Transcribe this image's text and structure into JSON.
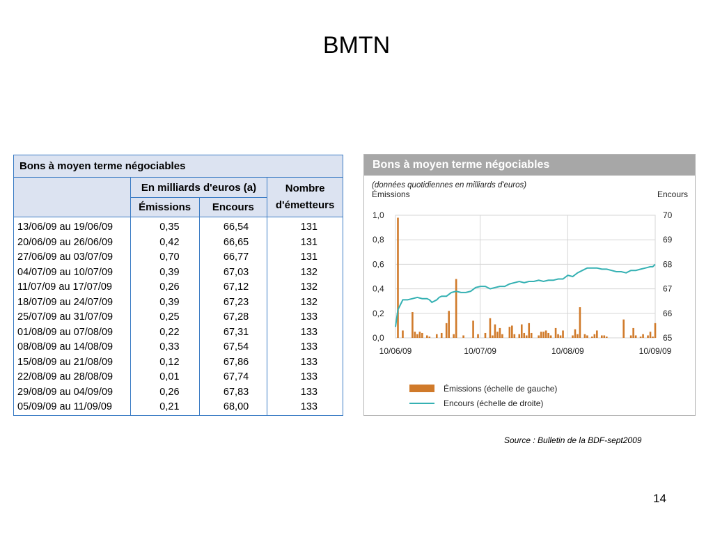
{
  "slide": {
    "title": "BMTN",
    "source": "Source : Bulletin de la BDF-sept2009",
    "page_number": "14"
  },
  "table": {
    "title": "Bons à moyen terme négociables",
    "group_header": "En milliards d'euros (a)",
    "col_emissions": "Émissions",
    "col_encours": "Encours",
    "col_nombre": "Nombre d'émetteurs",
    "rows": [
      {
        "period": "13/06/09 au 19/06/09",
        "emissions": "0,35",
        "encours": "66,54",
        "nombre": "131"
      },
      {
        "period": "20/06/09 au 26/06/09",
        "emissions": "0,42",
        "encours": "66,65",
        "nombre": "131"
      },
      {
        "period": "27/06/09 au 03/07/09",
        "emissions": "0,70",
        "encours": "66,77",
        "nombre": "131"
      },
      {
        "period": "04/07/09 au 10/07/09",
        "emissions": "0,39",
        "encours": "67,03",
        "nombre": "132"
      },
      {
        "period": "11/07/09 au 17/07/09",
        "emissions": "0,26",
        "encours": "67,12",
        "nombre": "132"
      },
      {
        "period": "18/07/09 au 24/07/09",
        "emissions": "0,39",
        "encours": "67,23",
        "nombre": "132"
      },
      {
        "period": "25/07/09 au 31/07/09",
        "emissions": "0,25",
        "encours": "67,28",
        "nombre": "133"
      },
      {
        "period": "01/08/09 au 07/08/09",
        "emissions": "0,22",
        "encours": "67,31",
        "nombre": "133"
      },
      {
        "period": "08/08/09 au 14/08/09",
        "emissions": "0,33",
        "encours": "67,54",
        "nombre": "133"
      },
      {
        "period": "15/08/09 au 21/08/09",
        "emissions": "0,12",
        "encours": "67,86",
        "nombre": "133"
      },
      {
        "period": "22/08/09 au 28/08/09",
        "emissions": "0,01",
        "encours": "67,74",
        "nombre": "133"
      },
      {
        "period": "29/08/09 au 04/09/09",
        "emissions": "0,26",
        "encours": "67,83",
        "nombre": "133"
      },
      {
        "period": "05/09/09 au 11/09/09",
        "emissions": "0,21",
        "encours": "68,00",
        "nombre": "133"
      }
    ]
  },
  "chart_data": {
    "type": "bar",
    "title": "Bons à moyen terme négociables",
    "subtitle": "(données quotidiennes en milliards d'euros)",
    "ylabel": "Émissions",
    "y2label": "Encours",
    "ylim": [
      0,
      1.0
    ],
    "y2lim": [
      65,
      70
    ],
    "yticks": [
      "0,0",
      "0,2",
      "0,4",
      "0,6",
      "0,8",
      "1,0"
    ],
    "y2ticks": [
      "65",
      "66",
      "67",
      "68",
      "69",
      "70"
    ],
    "xticks": [
      "10/06/09",
      "10/07/09",
      "10/08/09",
      "10/09/09"
    ],
    "xrange_days": [
      0,
      92
    ],
    "grid": true,
    "legend_position": "bottom",
    "series": [
      {
        "name": "Émissions (échelle de gauche)",
        "kind": "bar",
        "color": "#d07a2a",
        "axis": "left",
        "x": [
          1,
          3,
          7,
          8,
          9,
          10,
          11,
          13,
          14,
          17,
          19,
          21,
          22,
          24,
          25,
          28,
          32,
          34,
          37,
          39,
          40,
          41,
          42,
          43,
          44,
          47,
          48,
          49,
          51,
          52,
          53,
          54,
          55,
          56,
          59,
          60,
          61,
          62,
          63,
          64,
          66,
          67,
          68,
          69,
          73,
          74,
          75,
          76,
          78,
          79,
          81,
          82,
          83,
          85,
          86,
          87,
          94,
          97,
          98,
          99,
          101,
          102,
          104,
          105,
          106,
          107
        ],
        "values": [
          0.98,
          0.06,
          0.21,
          0.05,
          0.03,
          0.05,
          0.04,
          0.02,
          0.01,
          0.03,
          0.04,
          0.12,
          0.22,
          0.03,
          0.48,
          0.02,
          0.14,
          0.03,
          0.04,
          0.16,
          0.02,
          0.11,
          0.05,
          0.08,
          0.03,
          0.09,
          0.1,
          0.03,
          0.03,
          0.11,
          0.04,
          0.02,
          0.12,
          0.04,
          0.02,
          0.05,
          0.05,
          0.06,
          0.04,
          0.02,
          0.08,
          0.03,
          0.02,
          0.06,
          0.02,
          0.07,
          0.03,
          0.25,
          0.03,
          0.02,
          0.01,
          0.03,
          0.06,
          0.02,
          0.02,
          0.01,
          0.15,
          0.02,
          0.08,
          0.02,
          0.01,
          0.03,
          0.02,
          0.05,
          0.01,
          0.12
        ]
      },
      {
        "name": "Encours (échelle de droite)",
        "kind": "line",
        "color": "#35b1b3",
        "axis": "right",
        "x": [
          0,
          1,
          3,
          5,
          7,
          9,
          11,
          13,
          14,
          15,
          17,
          18,
          19,
          21,
          23,
          25,
          27,
          29,
          31,
          33,
          35,
          37,
          39,
          41,
          43,
          45,
          47,
          49,
          51,
          53,
          55,
          57,
          59,
          61,
          63,
          65,
          67,
          69,
          71,
          73,
          75,
          77,
          79,
          81,
          83,
          85,
          87,
          89,
          91,
          93,
          95,
          97,
          99,
          101,
          103,
          105,
          106,
          107
        ],
        "values": [
          65.45,
          66.15,
          66.55,
          66.55,
          66.6,
          66.65,
          66.6,
          66.6,
          66.55,
          66.45,
          66.55,
          66.65,
          66.7,
          66.7,
          66.85,
          66.9,
          66.85,
          66.85,
          66.9,
          67.05,
          67.1,
          67.1,
          67.0,
          67.05,
          67.1,
          67.1,
          67.2,
          67.25,
          67.3,
          67.25,
          67.3,
          67.3,
          67.35,
          67.3,
          67.35,
          67.35,
          67.4,
          67.4,
          67.55,
          67.5,
          67.65,
          67.75,
          67.85,
          67.85,
          67.85,
          67.8,
          67.8,
          67.75,
          67.7,
          67.7,
          67.65,
          67.75,
          67.75,
          67.8,
          67.85,
          67.9,
          67.9,
          68.0
        ]
      }
    ]
  }
}
